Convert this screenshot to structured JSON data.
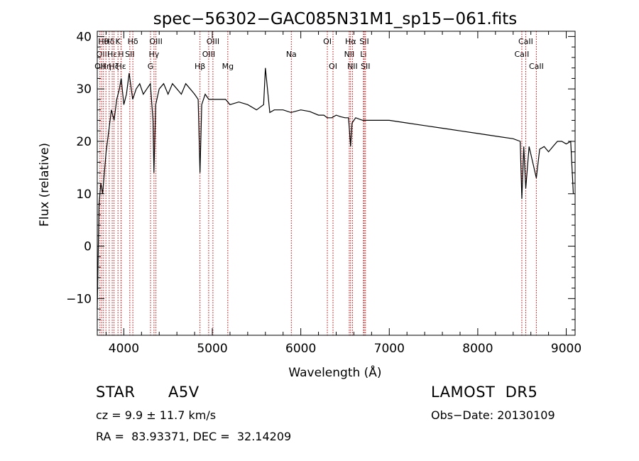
{
  "chart_data": {
    "type": "line",
    "title": "spec−56302−GAC085N31M1_sp15−061.fits",
    "xlabel": "Wavelength (Å)",
    "ylabel": "Flux (relative)",
    "xlim": [
      3700,
      9100
    ],
    "ylim": [
      -17,
      41
    ],
    "xticks": [
      4000,
      5000,
      6000,
      7000,
      8000,
      9000
    ],
    "yticks": [
      -10,
      0,
      10,
      20,
      30,
      40
    ],
    "ytick_labels": [
      "−10",
      "0",
      "10",
      "20",
      "30",
      "40"
    ],
    "grid": false,
    "line_color": "#000000",
    "marker_color": "#cc0000",
    "series": [
      {
        "x": [
          3700,
          3720,
          3740,
          3760,
          3780,
          3800,
          3830,
          3860,
          3890,
          3920,
          3950,
          3970,
          4000,
          4030,
          4060,
          4100,
          4140,
          4180,
          4220,
          4260,
          4300,
          4330,
          4340,
          4360,
          4400,
          4450,
          4500,
          4550,
          4600,
          4650,
          4700,
          4750,
          4800,
          4840,
          4861,
          4880,
          4920,
          4960,
          5000,
          5050,
          5100,
          5150,
          5200,
          5300,
          5400,
          5500,
          5580,
          5600,
          5650,
          5700,
          5800,
          5890,
          6000,
          6100,
          6200,
          6260,
          6300,
          6350,
          6400,
          6450,
          6500,
          6540,
          6563,
          6580,
          6620,
          6700,
          6800,
          6900,
          7000,
          7200,
          7400,
          7600,
          7800,
          8000,
          8200,
          8400,
          8480,
          8498,
          8520,
          8542,
          8580,
          8662,
          8700,
          8750,
          8800,
          8850,
          8900,
          8950,
          9000,
          9050,
          9080
        ],
        "y": [
          -12,
          8,
          12,
          10,
          14,
          18,
          22,
          26,
          24,
          28,
          30,
          32,
          27,
          29,
          33,
          28,
          30,
          31,
          29,
          30,
          31,
          24,
          14,
          27,
          30,
          31,
          29,
          31,
          30,
          29,
          31,
          30,
          29,
          28,
          14,
          27,
          29,
          28,
          28,
          28,
          28,
          28,
          27,
          27.5,
          27,
          26,
          27,
          34,
          25.5,
          26,
          26,
          25.5,
          26,
          25.7,
          25,
          25,
          24.5,
          24.5,
          25,
          24.7,
          24.5,
          24.5,
          19,
          23.5,
          24.5,
          24,
          24,
          24,
          24,
          23.5,
          23,
          22.5,
          22,
          21.5,
          21,
          20.5,
          20,
          9,
          19,
          11,
          19,
          13,
          18.5,
          19,
          18,
          19,
          20,
          20,
          19.5,
          20,
          10
        ]
      }
    ],
    "line_markers": [
      {
        "wavelength": 3750,
        "label": "OII",
        "row": 2
      },
      {
        "wavelength": 3730,
        "label": "OII",
        "row": 3
      },
      {
        "wavelength": 3770,
        "label": "Hθ",
        "row": 1
      },
      {
        "wavelength": 3798,
        "label": "Hη",
        "row": 3
      },
      {
        "wavelength": 3835,
        "label": "Hδ",
        "row": 1
      },
      {
        "wavelength": 3869,
        "label": "Hε",
        "row": 2
      },
      {
        "wavelength": 3889,
        "label": "Hζ",
        "row": 3
      },
      {
        "wavelength": 3934,
        "label": "K",
        "row": 1
      },
      {
        "wavelength": 3968,
        "label": "H",
        "row": 2
      },
      {
        "wavelength": 3970,
        "label": "Hε",
        "row": 3
      },
      {
        "wavelength": 4068,
        "label": "SII",
        "row": 2
      },
      {
        "wavelength": 4102,
        "label": "Hδ",
        "row": 1
      },
      {
        "wavelength": 4302,
        "label": "G",
        "row": 3
      },
      {
        "wavelength": 4341,
        "label": "Hγ",
        "row": 2
      },
      {
        "wavelength": 4363,
        "label": "OIII",
        "row": 1
      },
      {
        "wavelength": 4861,
        "label": "Hβ",
        "row": 3
      },
      {
        "wavelength": 4959,
        "label": "OIII",
        "row": 2
      },
      {
        "wavelength": 5007,
        "label": "OIII",
        "row": 1
      },
      {
        "wavelength": 5175,
        "label": "Mg",
        "row": 3
      },
      {
        "wavelength": 5893,
        "label": "Na",
        "row": 2
      },
      {
        "wavelength": 6300,
        "label": "OI",
        "row": 1
      },
      {
        "wavelength": 6364,
        "label": "OI",
        "row": 3
      },
      {
        "wavelength": 6548,
        "label": "NII",
        "row": 2
      },
      {
        "wavelength": 6563,
        "label": "Hα",
        "row": 1
      },
      {
        "wavelength": 6584,
        "label": "NII",
        "row": 3
      },
      {
        "wavelength": 6708,
        "label": "Li",
        "row": 2
      },
      {
        "wavelength": 6717,
        "label": "SII",
        "row": 1
      },
      {
        "wavelength": 6731,
        "label": "SII",
        "row": 3
      },
      {
        "wavelength": 8498,
        "label": "CaII",
        "row": 2
      },
      {
        "wavelength": 8542,
        "label": "CaII",
        "row": 1
      },
      {
        "wavelength": 8662,
        "label": "CaII",
        "row": 3
      }
    ]
  },
  "footer": {
    "class_label": "STAR",
    "subclass": "A5V",
    "survey": "LAMOST  DR5",
    "cz": "cz = 9.9 ± 11.7 km/s",
    "obs_date": "Obs−Date: 20130109",
    "coords": "RA =  83.93371, DEC =  32.14209"
  }
}
